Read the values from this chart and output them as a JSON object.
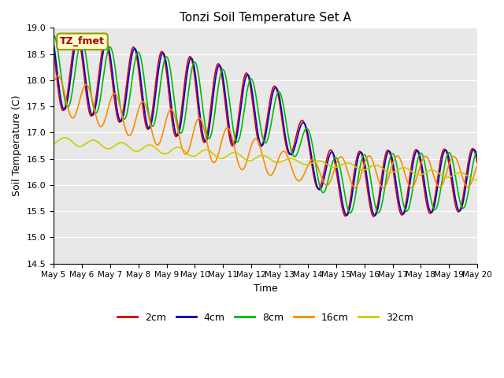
{
  "title": "Tonzi Soil Temperature Set A",
  "xlabel": "Time",
  "ylabel": "Soil Temperature (C)",
  "ylim": [
    14.5,
    19.0
  ],
  "annotation": "TZ_fmet",
  "legend_labels": [
    "2cm",
    "4cm",
    "8cm",
    "16cm",
    "32cm"
  ],
  "legend_colors": [
    "#dd0000",
    "#0000cc",
    "#00bb00",
    "#ff8800",
    "#cccc00"
  ],
  "bg_color": "#e8e8e8",
  "x_ticks": [
    "May 5",
    "May 6",
    "May 7",
    "May 8",
    "May 9",
    "May 10",
    "May 11",
    "May 12",
    "May 13",
    "May 14",
    "May 15",
    "May 16",
    "May 17",
    "May 18",
    "May 19",
    "May 20"
  ],
  "x_tick_positions": [
    0,
    24,
    48,
    72,
    96,
    120,
    144,
    168,
    192,
    216,
    240,
    264,
    288,
    312,
    336,
    360
  ],
  "yticks": [
    14.5,
    15.0,
    15.5,
    16.0,
    16.5,
    17.0,
    17.5,
    18.0,
    18.5,
    19.0
  ],
  "num_points": 721
}
